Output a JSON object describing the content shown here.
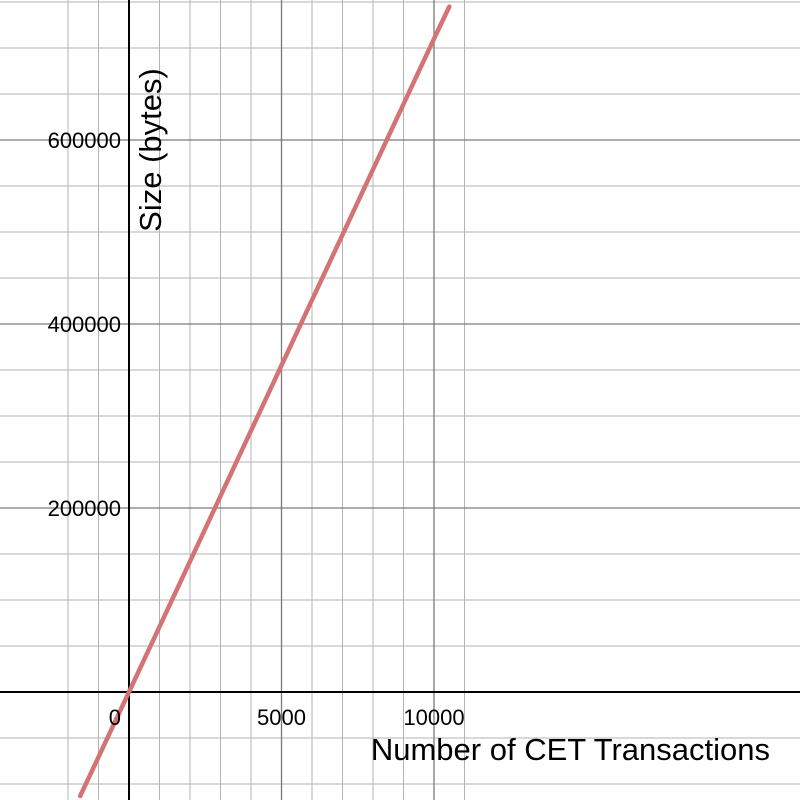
{
  "chart_data": {
    "type": "line",
    "title": "",
    "xlabel": "Number of CET Transactions",
    "ylabel": "Size (bytes)",
    "xlim": [
      -2100,
      11000
    ],
    "ylim": [
      -120000,
      750000
    ],
    "x_ticks": [
      {
        "value": 0,
        "label": "0"
      },
      {
        "value": 5000,
        "label": "5000"
      },
      {
        "value": 10000,
        "label": "10000"
      }
    ],
    "y_ticks": [
      {
        "value": 200000,
        "label": "200000"
      },
      {
        "value": 400000,
        "label": "400000"
      },
      {
        "value": 600000,
        "label": "600000"
      }
    ],
    "minor_grid_step_x": 1000,
    "minor_grid_step_y": 50000,
    "grid": true,
    "series": [
      {
        "color": "#d47373",
        "x": [
          -1600,
          0,
          2000,
          4000,
          6000,
          8000,
          10000,
          10500
        ],
        "y": [
          -113000,
          0,
          142000,
          284000,
          426000,
          568000,
          710000,
          745000
        ]
      }
    ]
  },
  "colors": {
    "background": "#ffffff",
    "minor_grid": "#b3b3b3",
    "major_grid": "#7a7a7a",
    "axis": "#000000",
    "series": "#d47373"
  }
}
